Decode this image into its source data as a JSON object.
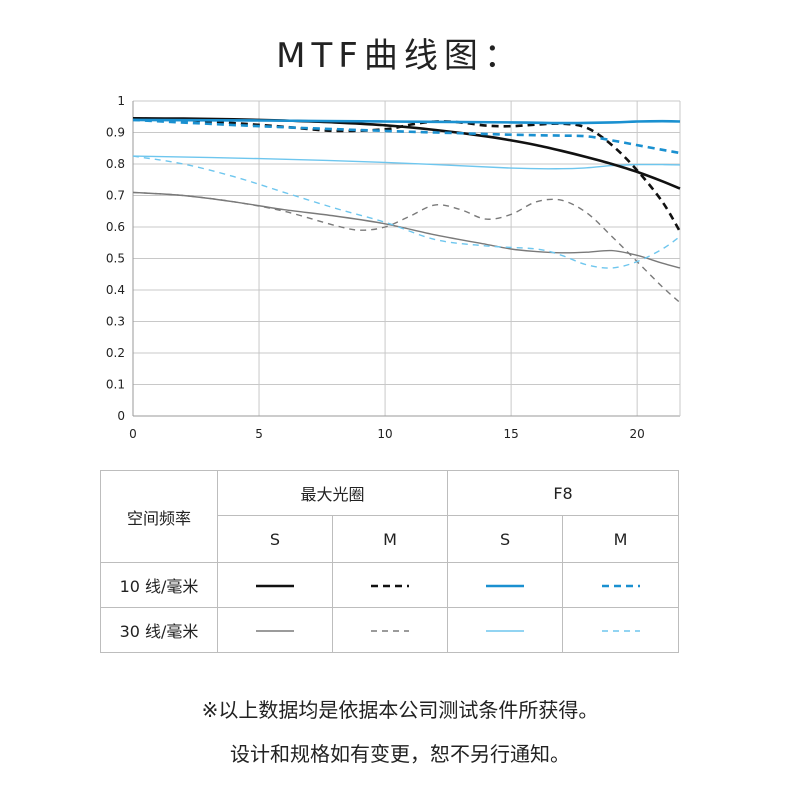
{
  "title": "MTF曲线图：",
  "chart_data": {
    "type": "line",
    "title": "MTF曲线图：",
    "xlabel": "",
    "ylabel": "",
    "xlim": [
      0,
      21.7
    ],
    "ylim": [
      0,
      1
    ],
    "x_ticks": [
      "0",
      "5",
      "10",
      "15",
      "20"
    ],
    "y_ticks": [
      "0",
      "0.1",
      "0.2",
      "0.3",
      "0.4",
      "0.5",
      "0.6",
      "0.7",
      "0.8",
      "0.9",
      "1"
    ],
    "grid": true,
    "series": [
      {
        "name": "最大光圈 10 线/毫米 S",
        "color": "#111111",
        "dash": "solid",
        "width": 2.6,
        "x": [
          0,
          2,
          4,
          6,
          8,
          10,
          12,
          14,
          15,
          16,
          17,
          18,
          19,
          20,
          21,
          21.7
        ],
        "y": [
          0.945,
          0.944,
          0.942,
          0.938,
          0.932,
          0.923,
          0.908,
          0.888,
          0.875,
          0.86,
          0.842,
          0.822,
          0.8,
          0.775,
          0.745,
          0.722
        ]
      },
      {
        "name": "最大光圈 10 线/毫米 M",
        "color": "#111111",
        "dash": "dashed",
        "width": 2.6,
        "x": [
          0,
          2,
          4,
          6,
          8,
          10,
          11,
          12,
          13,
          14,
          15,
          16,
          17,
          18,
          19,
          20,
          21,
          21.7
        ],
        "y": [
          0.945,
          0.94,
          0.93,
          0.918,
          0.905,
          0.91,
          0.925,
          0.935,
          0.932,
          0.922,
          0.92,
          0.925,
          0.928,
          0.915,
          0.86,
          0.78,
          0.68,
          0.585
        ]
      },
      {
        "name": "F8 10 线/毫米 S",
        "color": "#1a90d0",
        "dash": "solid",
        "width": 2.6,
        "x": [
          0,
          5,
          10,
          15,
          17,
          19,
          20,
          21,
          21.7
        ],
        "y": [
          0.94,
          0.938,
          0.935,
          0.932,
          0.93,
          0.932,
          0.935,
          0.936,
          0.935
        ]
      },
      {
        "name": "F8 10 线/毫米 M",
        "color": "#1a90d0",
        "dash": "dashed",
        "width": 2.6,
        "x": [
          0,
          5,
          10,
          12,
          15,
          17,
          18,
          19,
          20,
          21,
          21.7
        ],
        "y": [
          0.94,
          0.92,
          0.905,
          0.9,
          0.893,
          0.89,
          0.888,
          0.875,
          0.86,
          0.845,
          0.835
        ]
      },
      {
        "name": "最大光圈 30 线/毫米 S",
        "color": "#7a7a7a",
        "dash": "solid",
        "width": 1.4,
        "x": [
          0,
          2,
          4,
          6,
          8,
          10,
          12,
          14,
          15,
          16,
          17,
          18,
          19,
          20,
          21,
          21.7
        ],
        "y": [
          0.71,
          0.7,
          0.68,
          0.655,
          0.635,
          0.61,
          0.575,
          0.545,
          0.53,
          0.522,
          0.518,
          0.52,
          0.525,
          0.51,
          0.485,
          0.47
        ]
      },
      {
        "name": "最大光圈 30 线/毫米 M",
        "color": "#7a7a7a",
        "dash": "dashed",
        "width": 1.4,
        "x": [
          0,
          2,
          4,
          6,
          8,
          9,
          10,
          11,
          12,
          13,
          14,
          15,
          16,
          17,
          18,
          19,
          20,
          21,
          21.7
        ],
        "y": [
          0.71,
          0.7,
          0.68,
          0.65,
          0.605,
          0.59,
          0.6,
          0.635,
          0.67,
          0.655,
          0.625,
          0.64,
          0.68,
          0.685,
          0.645,
          0.57,
          0.49,
          0.41,
          0.36
        ]
      },
      {
        "name": "F8 30 线/毫米 S",
        "color": "#6ec6ee",
        "dash": "solid",
        "width": 1.4,
        "x": [
          0,
          5,
          10,
          15,
          17,
          18,
          19,
          20,
          21,
          21.7
        ],
        "y": [
          0.825,
          0.817,
          0.805,
          0.787,
          0.785,
          0.788,
          0.795,
          0.798,
          0.798,
          0.797
        ]
      },
      {
        "name": "F8 30 线/毫米 M",
        "color": "#6ec6ee",
        "dash": "dashed",
        "width": 1.4,
        "x": [
          0,
          2,
          4,
          6,
          8,
          10,
          12,
          14,
          16,
          17,
          18,
          19,
          20,
          21,
          21.7
        ],
        "y": [
          0.825,
          0.8,
          0.76,
          0.71,
          0.66,
          0.615,
          0.56,
          0.54,
          0.53,
          0.51,
          0.48,
          0.47,
          0.49,
          0.53,
          0.57
        ]
      }
    ]
  },
  "legend": {
    "header": "空间频率",
    "group1": "最大光圈",
    "group2": "F8",
    "s": "S",
    "m": "M",
    "row1": "10 线/毫米",
    "row2": "30 线/毫米"
  },
  "notes": {
    "line1": "※以上数据均是依据本公司测试条件所获得。",
    "line2": "设计和规格如有变更，恕不另行通知。"
  }
}
